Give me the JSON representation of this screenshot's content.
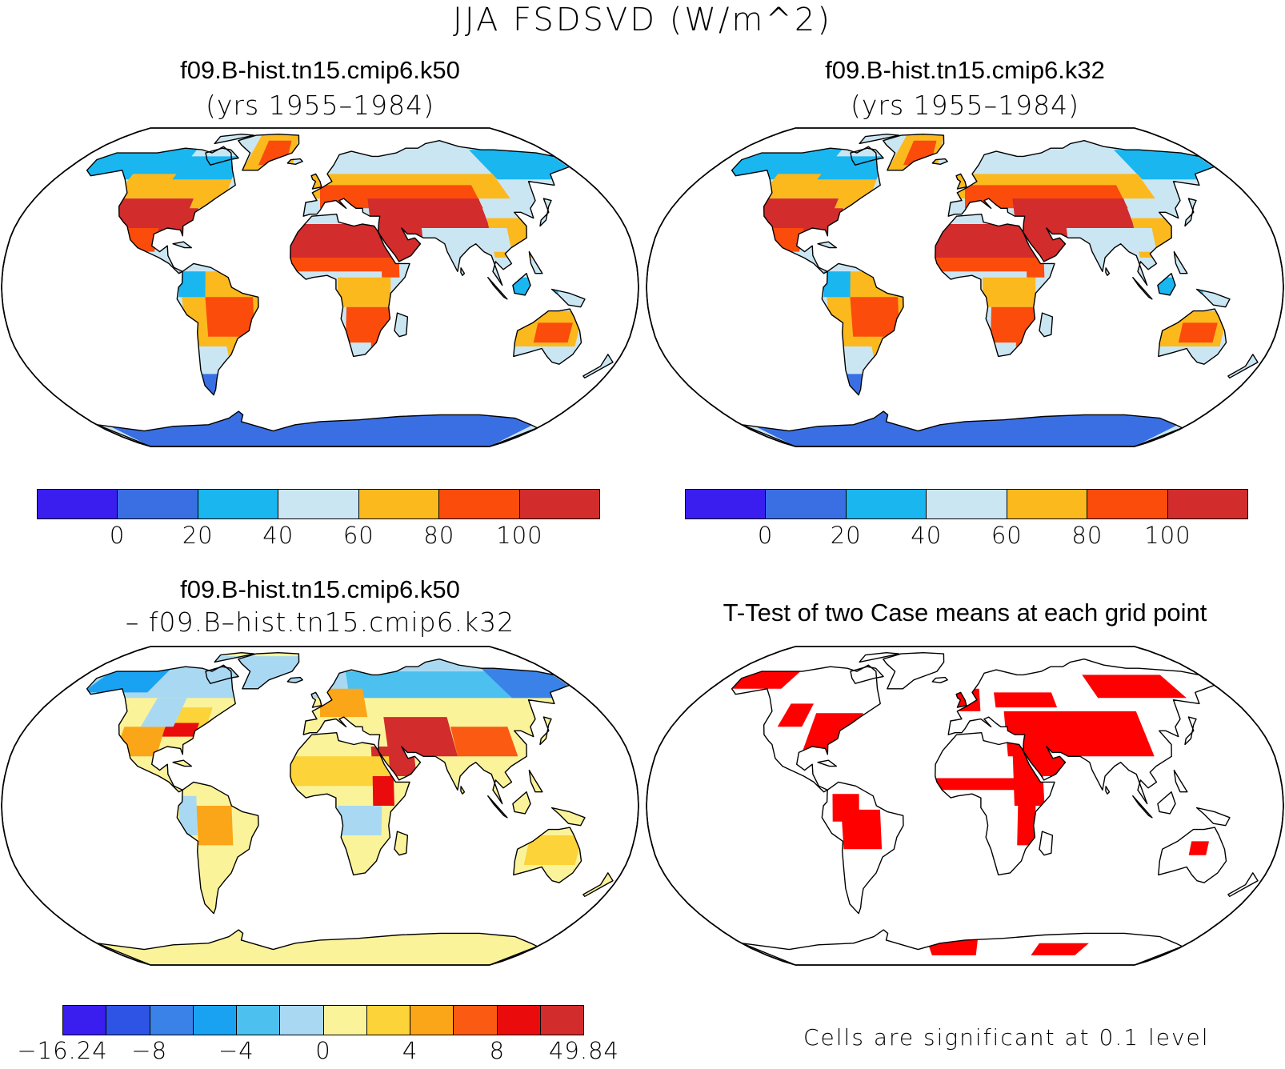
{
  "figure": {
    "title": "JJA FSDSVD (W/m^2)"
  },
  "panels": [
    {
      "title": "f09.B-hist.tn15.cmip6.k50",
      "subtitle": "(yrs 1955–1984)",
      "colorbar": {
        "colors": [
          "#3a1ef0",
          "#3a6fe4",
          "#19b6f0",
          "#cbe6f3",
          "#fbb91e",
          "#fb4c0c",
          "#d22c2c"
        ],
        "tick_labels": [
          "0",
          "20",
          "40",
          "60",
          "80",
          "100"
        ]
      }
    },
    {
      "title": "f09.B-hist.tn15.cmip6.k32",
      "subtitle": "(yrs 1955–1984)",
      "colorbar": {
        "colors": [
          "#3a1ef0",
          "#3a6fe4",
          "#19b6f0",
          "#cbe6f3",
          "#fbb91e",
          "#fb4c0c",
          "#d22c2c"
        ],
        "tick_labels": [
          "0",
          "20",
          "40",
          "60",
          "80",
          "100"
        ]
      }
    },
    {
      "title": "f09.B-hist.tn15.cmip6.k50",
      "subtitle": "– f09.B–hist.tn15.cmip6.k32",
      "colorbar": {
        "colors": [
          "#3a1ef0",
          "#2e54e6",
          "#3a82e8",
          "#1aa2f2",
          "#4cc0ef",
          "#a9d9f2",
          "#fbf39a",
          "#fcd338",
          "#fba618",
          "#fb5a12",
          "#ea0c0c",
          "#d22c2c"
        ],
        "tick_labels": [
          "−16.24",
          "−8",
          "−4",
          "0",
          "4",
          "8",
          "49.84"
        ]
      }
    },
    {
      "title": "T-Test of two Case means at each grid point",
      "note": "Cells are significant at 0.1 level",
      "significant_color": "#ff0000"
    }
  ]
}
